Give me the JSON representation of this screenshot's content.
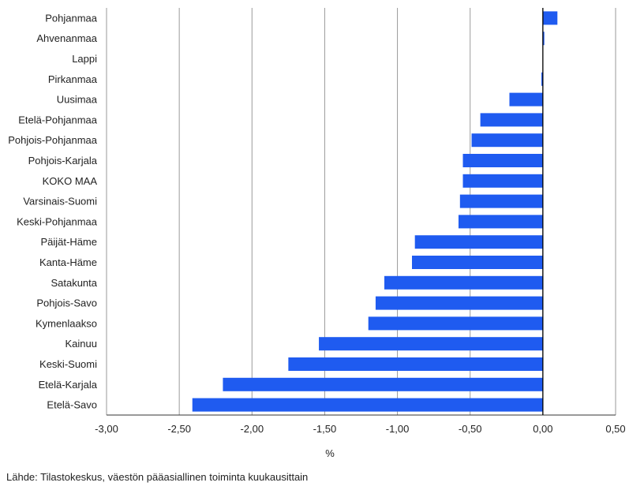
{
  "chart_data": {
    "type": "bar",
    "orientation": "horizontal",
    "categories": [
      "Pohjanmaa",
      "Ahvenanmaa",
      "Lappi",
      "Pirkanmaa",
      "Uusimaa",
      "Etelä-Pohjanmaa",
      "Pohjois-Pohjanmaa",
      "Pohjois-Karjala",
      "KOKO MAA",
      "Varsinais-Suomi",
      "Keski-Pohjanmaa",
      "Päijät-Häme",
      "Kanta-Häme",
      "Satakunta",
      "Pohjois-Savo",
      "Kymenlaakso",
      "Kainuu",
      "Keski-Suomi",
      "Etelä-Karjala",
      "Etelä-Savo"
    ],
    "values": [
      0.1,
      0.01,
      0.0,
      -0.01,
      -0.23,
      -0.43,
      -0.49,
      -0.55,
      -0.55,
      -0.57,
      -0.58,
      -0.88,
      -0.9,
      -1.09,
      -1.15,
      -1.2,
      -1.54,
      -1.75,
      -2.2,
      -2.41
    ],
    "xlabel": "%",
    "xlim": [
      -3.0,
      0.5
    ],
    "xticks": [
      -3.0,
      -2.5,
      -2.0,
      -1.5,
      -1.0,
      -0.5,
      0.0,
      0.5
    ],
    "xtick_labels": [
      "-3,00",
      "-2,50",
      "-2,00",
      "-1,50",
      "-1,00",
      "-0,50",
      "0,00",
      "0,50"
    ],
    "grid": true,
    "bar_color": "#1f5bf0"
  },
  "source": "Lähde: Tilastokeskus, väestön pääasiallinen toiminta kuukausittain"
}
